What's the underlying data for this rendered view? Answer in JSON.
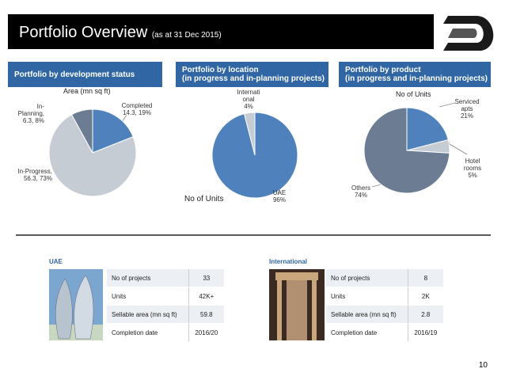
{
  "header": {
    "title": "Portfolio Overview",
    "subtitle": "(as at 31 Dec 2015)"
  },
  "chart_data": [
    {
      "type": "pie",
      "title": "Portfolio by development status",
      "subtitle": "Area (mn sq ft)",
      "categories": [
        "Completed",
        "In-Progress,",
        "In-Planning,"
      ],
      "values": [
        19,
        73,
        8
      ],
      "value_labels": [
        "14.3, 19%",
        "56.3, 73%",
        "6.3, 8%"
      ],
      "colors": [
        "#4f81bd",
        "#c6ccd4",
        "#6b7c93"
      ]
    },
    {
      "type": "pie",
      "title": "Portfolio by location\n(in progress and in-planning projects)",
      "subtitle": "No of Units",
      "categories": [
        "UAE",
        "International"
      ],
      "values": [
        96,
        4
      ],
      "value_labels": [
        "96%",
        "4%"
      ],
      "colors": [
        "#4f81bd",
        "#c6ccd4"
      ]
    },
    {
      "type": "pie",
      "title": "Portfolio by product\n(in progress and in-planning projects)",
      "subtitle": "No of Units",
      "categories": [
        "Serviced apts",
        "Hotel rooms",
        "Others"
      ],
      "values": [
        21,
        5,
        74
      ],
      "value_labels": [
        "21%",
        "5%",
        "74%"
      ],
      "colors": [
        "#4f81bd",
        "#c6ccd4",
        "#6b7c93"
      ]
    }
  ],
  "tables": [
    {
      "title": "UAE",
      "rows": [
        [
          "No of projects",
          "33"
        ],
        [
          "Units",
          "42K+"
        ],
        [
          "Sellable area (mn sq ft)",
          "59.8"
        ],
        [
          "Completion date",
          "2016/20"
        ]
      ]
    },
    {
      "title": "International",
      "rows": [
        [
          "No of projects",
          "8"
        ],
        [
          "Units",
          "2K"
        ],
        [
          "Sellable area (mn sq ft)",
          "2.8"
        ],
        [
          "Completion date",
          "2016/19"
        ]
      ]
    }
  ],
  "page_number": "10"
}
